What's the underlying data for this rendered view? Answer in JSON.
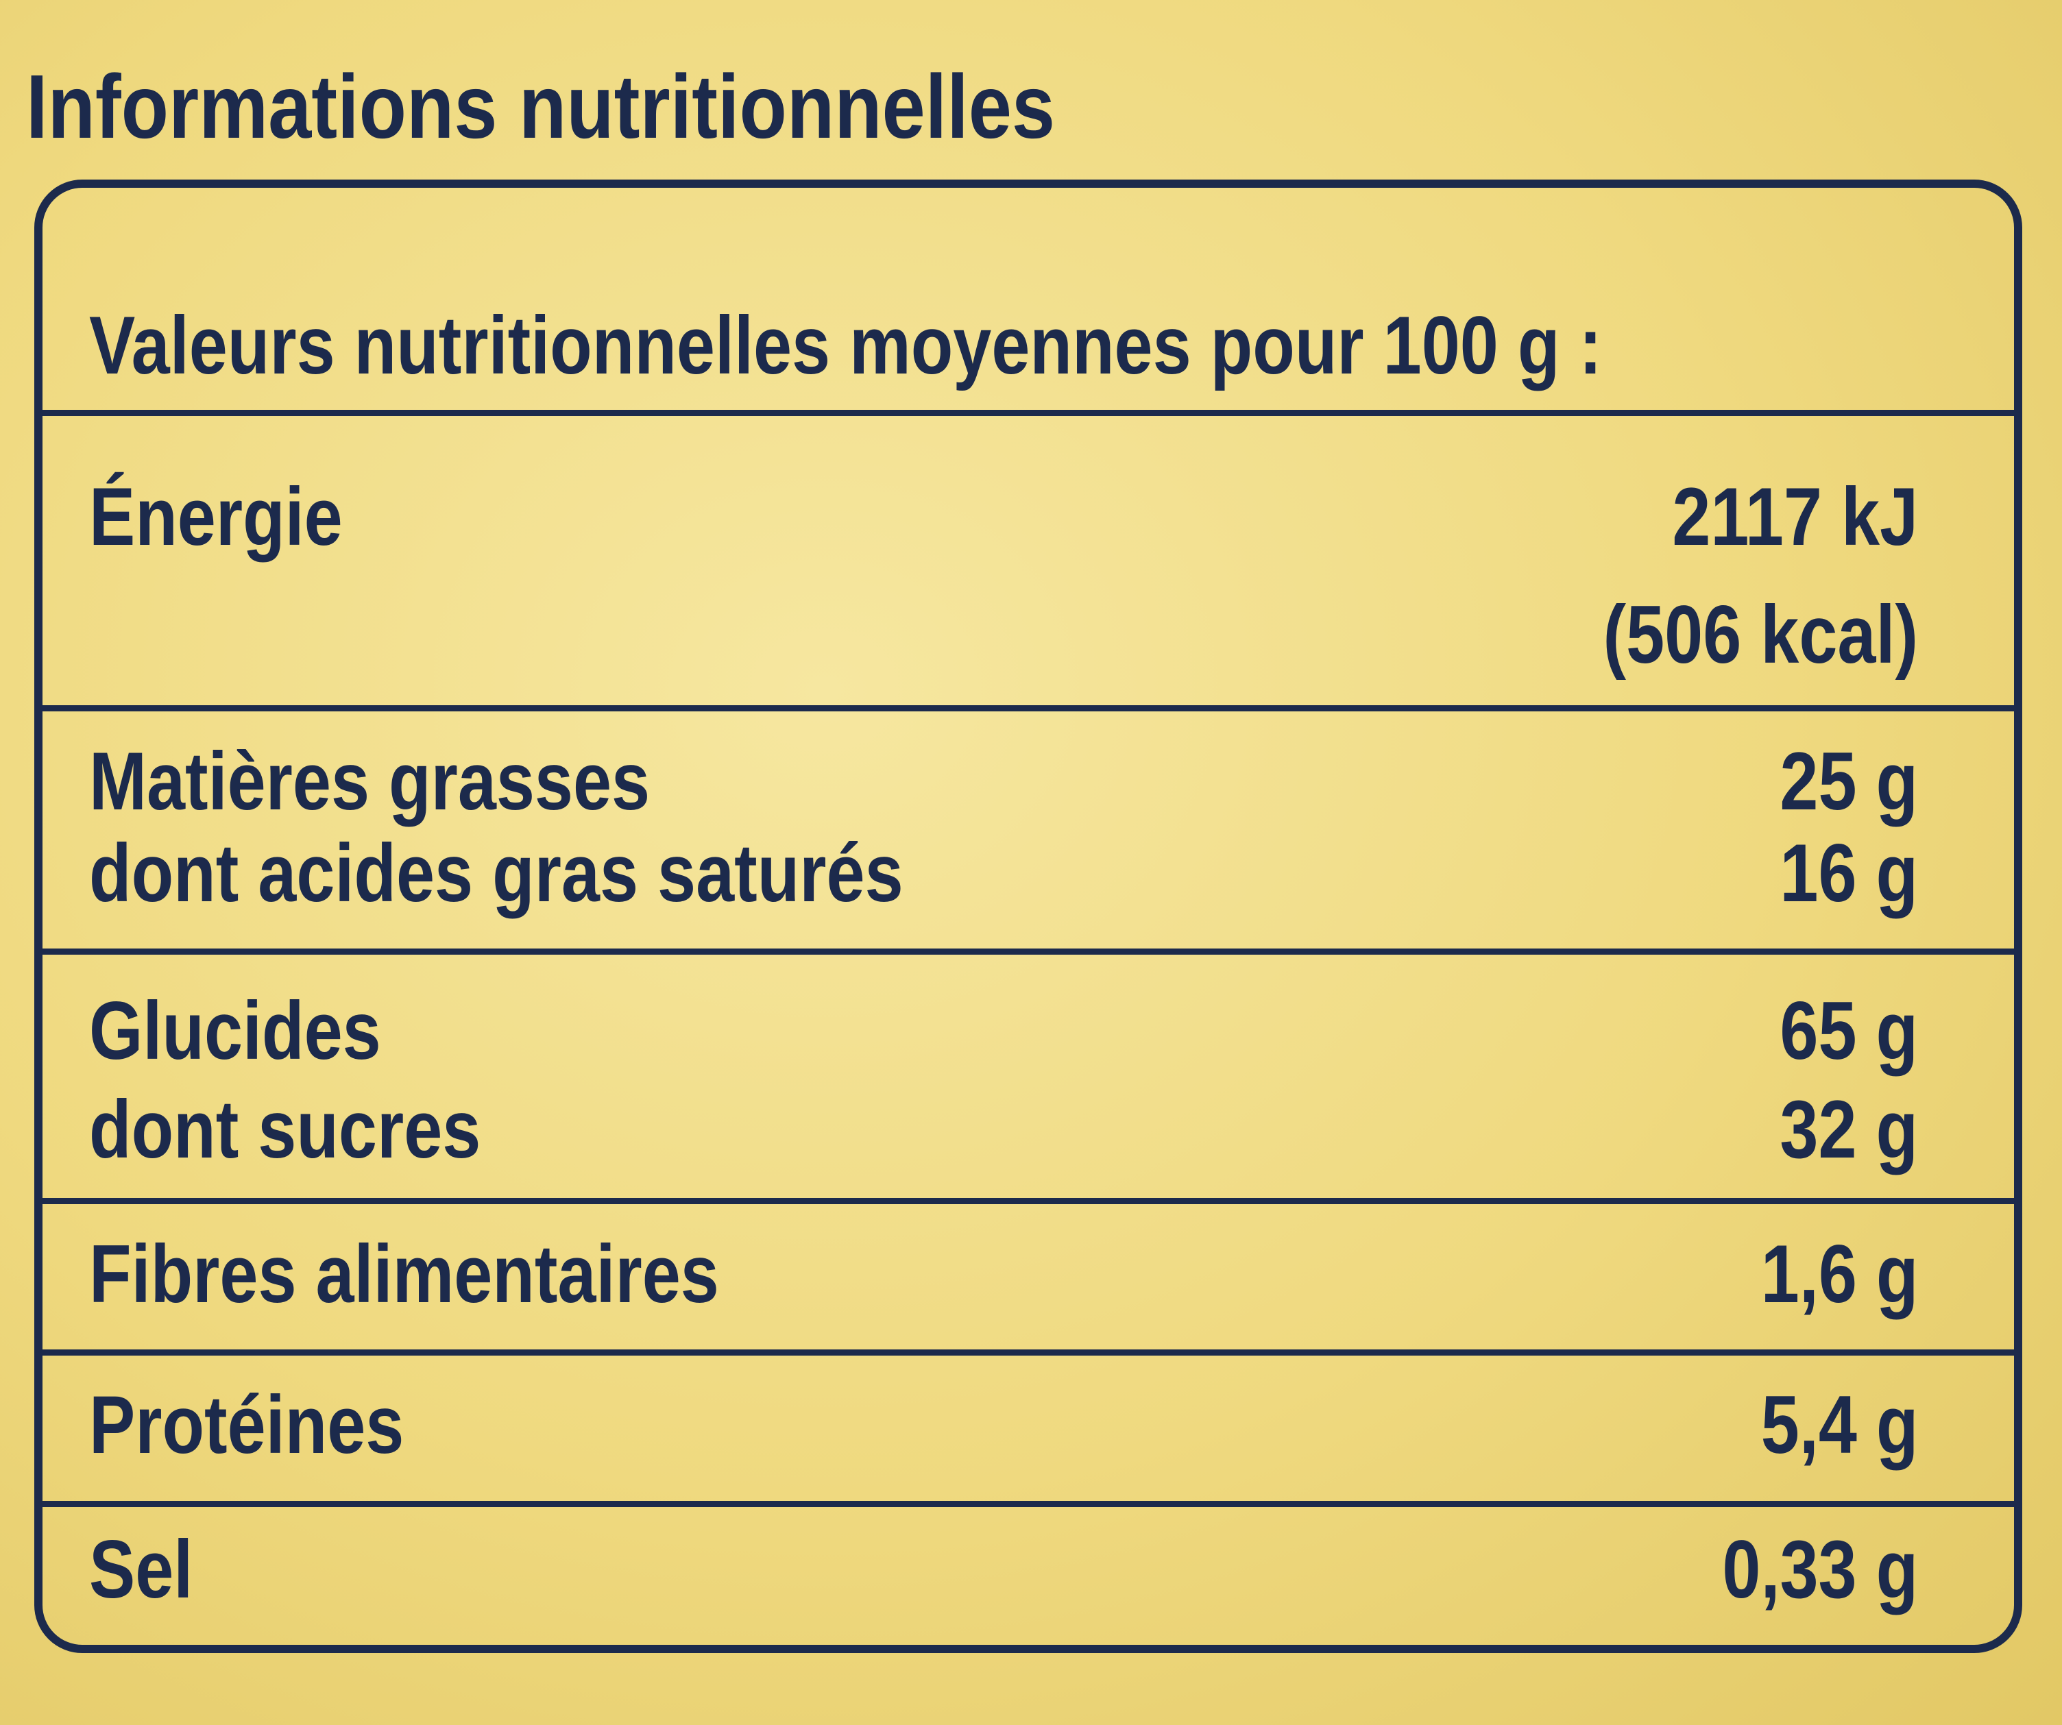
{
  "title": "Informations nutritionnelles",
  "table": {
    "header": "Valeurs nutritionnelles moyennes pour 100 g :",
    "rows": [
      {
        "label": "Énergie",
        "value": "2117 kJ",
        "value2": "(506 kcal)"
      },
      {
        "label": "Matières grasses",
        "value": "25 g"
      },
      {
        "label": "dont acides gras saturés",
        "value": "16 g"
      },
      {
        "label": "Glucides",
        "value": "65 g"
      },
      {
        "label": "dont sucres",
        "value": "32 g"
      },
      {
        "label": "Fibres alimentaires",
        "value": "1,6 g"
      },
      {
        "label": "Protéines",
        "value": "5,4 g"
      },
      {
        "label": "Sel",
        "value": "0,33 g"
      }
    ]
  },
  "colors": {
    "text": "#1c2a4c",
    "background": "#efd97f"
  }
}
